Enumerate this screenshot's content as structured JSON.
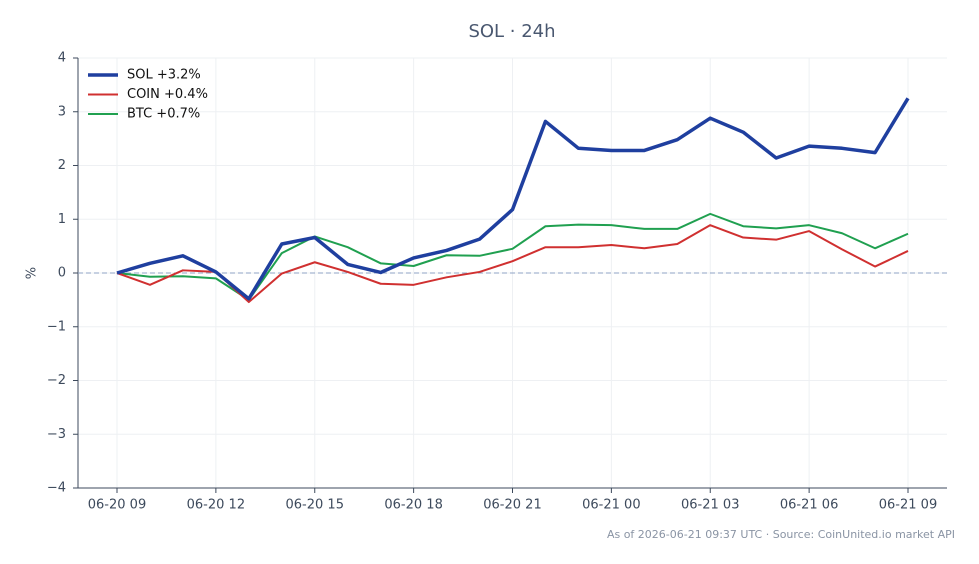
{
  "chart_data": {
    "type": "line",
    "title": "SOL · 24h",
    "y_label": "%",
    "note": "As of 2026-06-21 09:37 UTC · Source: CoinUnited.io market API",
    "categories": [
      "06-20 09",
      null,
      null,
      "06-20 12",
      null,
      null,
      "06-20 15",
      null,
      null,
      "06-20 18",
      null,
      null,
      "06-20 21",
      null,
      null,
      "06-21 00",
      null,
      null,
      "06-21 03",
      null,
      null,
      "06-21 06",
      null,
      null,
      "06-21 09"
    ],
    "series": [
      {
        "name": "SOL +3.2%",
        "color": "#1f3f9f",
        "line_width": 3.5,
        "values": [
          0.0,
          0.18,
          0.32,
          0.02,
          -0.48,
          0.54,
          0.66,
          0.16,
          0.01,
          0.28,
          0.42,
          0.63,
          1.18,
          2.82,
          2.32,
          2.28,
          2.28,
          2.48,
          2.88,
          2.62,
          2.14,
          2.36,
          2.32,
          2.24,
          3.25
        ]
      },
      {
        "name": "COIN +0.4%",
        "color": "#d03030",
        "line_width": 2,
        "values": [
          0.0,
          -0.22,
          0.05,
          0.02,
          -0.54,
          -0.01,
          0.2,
          0.02,
          -0.2,
          -0.22,
          -0.08,
          0.02,
          0.22,
          0.48,
          0.48,
          0.52,
          0.46,
          0.54,
          0.89,
          0.66,
          0.62,
          0.78,
          0.44,
          0.12,
          0.41
        ]
      },
      {
        "name": "BTC +0.7%",
        "color": "#20a050",
        "line_width": 2,
        "values": [
          0.0,
          -0.07,
          -0.06,
          -0.1,
          -0.5,
          0.37,
          0.68,
          0.48,
          0.18,
          0.13,
          0.33,
          0.32,
          0.45,
          0.87,
          0.9,
          0.89,
          0.82,
          0.82,
          1.1,
          0.87,
          0.83,
          0.89,
          0.74,
          0.46,
          0.73
        ]
      }
    ],
    "ylim": [
      -4,
      4
    ],
    "yticks": [
      {
        "value": -4,
        "label": "−4"
      },
      {
        "value": -3,
        "label": "−3"
      },
      {
        "value": -2,
        "label": "−2"
      },
      {
        "value": -1,
        "label": "−1"
      },
      0,
      1,
      2,
      3,
      4
    ],
    "reference_line": 0,
    "grid": true,
    "legend": "upper-left"
  }
}
